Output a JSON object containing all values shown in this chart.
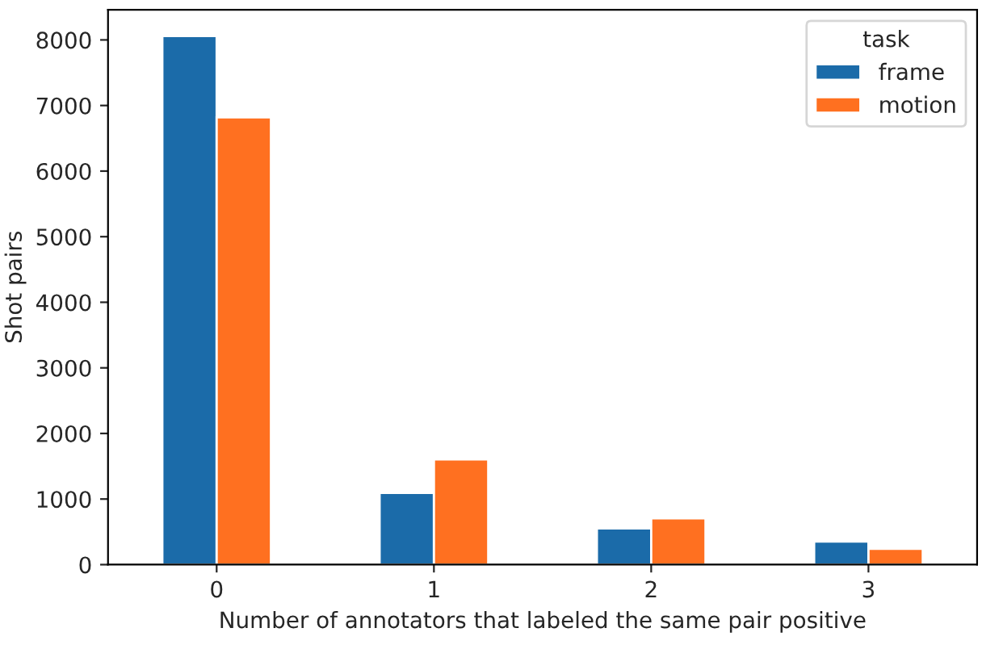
{
  "chart_data": {
    "type": "bar",
    "xlabel": "Number of annotators that labeled the same pair positive",
    "ylabel": "Shot pairs",
    "legend_title": "task",
    "legend": "top right",
    "categories": [
      "0",
      "1",
      "2",
      "3"
    ],
    "series": [
      {
        "name": "frame",
        "color": "#1b6ba9",
        "values": [
          8060,
          1095,
          552,
          353
        ]
      },
      {
        "name": "motion",
        "color": "#ff7020",
        "values": [
          6820,
          1603,
          707,
          241
        ]
      }
    ],
    "ylim": [
      0,
      8460
    ],
    "yticks": [
      0,
      1000,
      2000,
      3000,
      4000,
      5000,
      6000,
      7000,
      8000
    ],
    "grid": false
  }
}
